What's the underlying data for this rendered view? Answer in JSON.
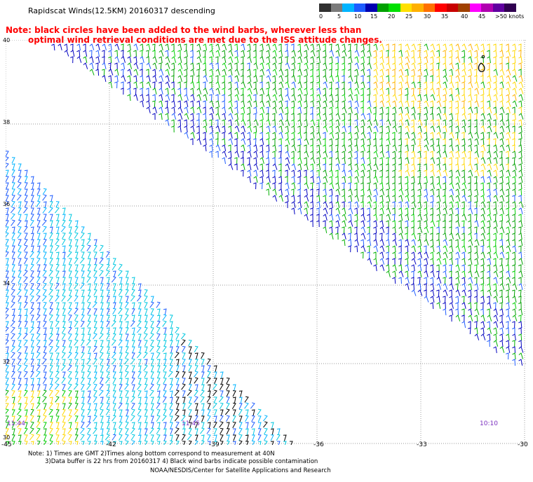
{
  "title": "Rapidscat Winds(12.5KM) 20160317 descending",
  "note_line1": "Note: black circles have been added to the wind barbs, wherever less than",
  "note_line2": "optimal wind retrieval conditions are met due to the ISS attitude changes.",
  "legend": {
    "labels": [
      "0",
      "5",
      "10",
      "15",
      "20",
      "25",
      "30",
      "35",
      "40",
      "45",
      ">50 knots"
    ],
    "colors": [
      "#303030",
      "#7a7a7a",
      "#00b4ff",
      "#1e5cff",
      "#0000b0",
      "#00a000",
      "#00e000",
      "#ffe000",
      "#ffb000",
      "#ff7000",
      "#ff0000",
      "#c80000",
      "#a04000",
      "#ff00ff",
      "#b000b0",
      "#6000a0",
      "#300050"
    ]
  },
  "lat_labels": [
    "40",
    "38",
    "36",
    "34",
    "32",
    "30"
  ],
  "lon_labels": [
    "-45",
    "-42",
    "-39",
    "-36",
    "-33",
    "-30"
  ],
  "times": [
    "11:44",
    "11:45",
    "10:10"
  ],
  "footer": {
    "line1": "Note: 1) Times are GMT 2)Times along bottom correspond to measurement at 40N",
    "line2": "3)Data buffer is 22 hrs from 20160317 4) Black wind barbs indicate possible contamination",
    "line3": "NOAA/NESDIS/Center for Satellite Applications and Research"
  }
}
